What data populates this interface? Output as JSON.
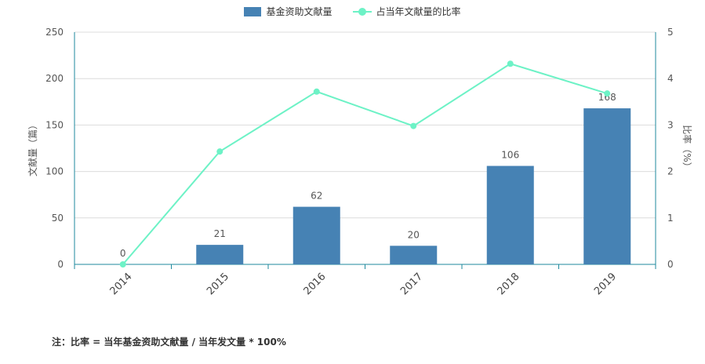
{
  "chart_data": {
    "type": "bar",
    "categories": [
      "2014",
      "2015",
      "2016",
      "2017",
      "2018",
      "2019"
    ],
    "series": [
      {
        "name": "基金资助文献量",
        "type": "bar",
        "axis": "left",
        "values": [
          0,
          21,
          62,
          20,
          106,
          168
        ],
        "color": "#4682b4"
      },
      {
        "name": "占当年文献量的比率",
        "type": "line",
        "axis": "right",
        "values": [
          0,
          2.43,
          3.72,
          2.98,
          4.32,
          3.68
        ],
        "color": "#6df2c6"
      }
    ],
    "data_labels": [
      "0",
      "21",
      "62",
      "20",
      "106",
      "168"
    ],
    "ylabel": "文献量（篇）",
    "ylabel_right": "比率（%）",
    "ylim": [
      0,
      250
    ],
    "ylim_right": [
      0,
      5
    ],
    "yticks": [
      "0",
      "50",
      "100",
      "150",
      "200",
      "250"
    ],
    "yticks_right": [
      "0",
      "1",
      "2",
      "3",
      "4",
      "5"
    ],
    "grid": true,
    "legend_position": "top-center"
  },
  "note": "注：比率 = 当年基金资助文献量 / 当年发文量 * 100%"
}
